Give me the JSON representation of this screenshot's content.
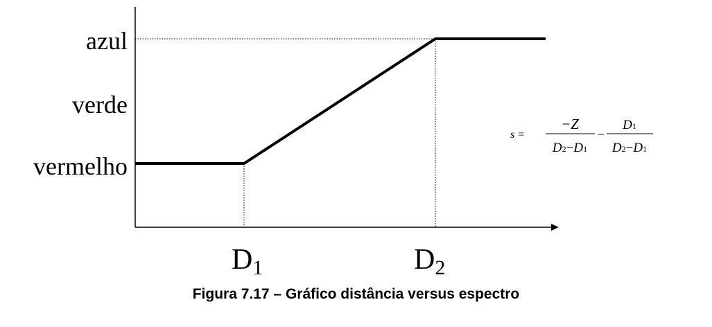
{
  "chart_data": {
    "type": "line",
    "y_categories": [
      "vermelho",
      "verde",
      "azul"
    ],
    "x_ticks": [
      {
        "label": "D",
        "sub": "1"
      },
      {
        "label": "D",
        "sub": "2"
      }
    ],
    "series": [
      {
        "points": [
          {
            "x": "start",
            "y": "vermelho"
          },
          {
            "x": "D1",
            "y": "vermelho"
          },
          {
            "x": "D2",
            "y": "azul"
          },
          {
            "x": "end",
            "y": "azul"
          }
        ]
      }
    ],
    "grid": false,
    "guides": "dotted lines at D1 and D2 and at azul level"
  },
  "formula": {
    "lhs": "s =",
    "frac1": {
      "num": "−Z",
      "den_a": "D",
      "den_a_sub": "2",
      "den_op": "−",
      "den_b": "D",
      "den_b_sub": "1"
    },
    "minus": "−",
    "frac2": {
      "num": "D",
      "num_sub": "1",
      "den_a": "D",
      "den_a_sub": "2",
      "den_op": "−",
      "den_b": "D",
      "den_b_sub": "1"
    }
  },
  "caption": "Figura 7.17 – Gráfico distância versus espectro"
}
